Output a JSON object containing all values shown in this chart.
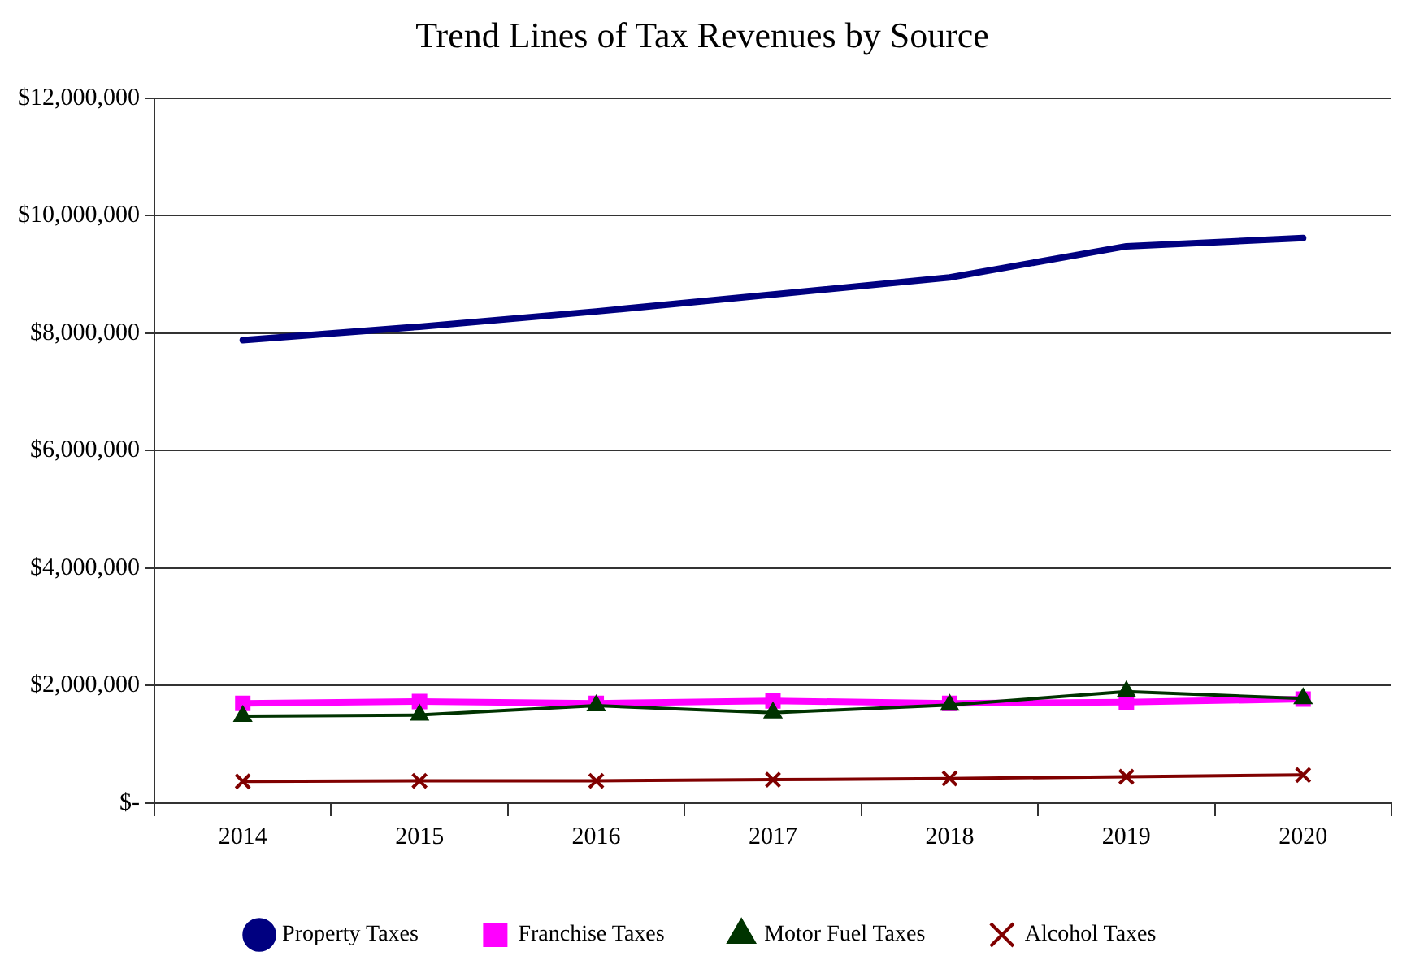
{
  "chart_data": {
    "type": "line",
    "title": "Trend Lines of Tax Revenues by Source",
    "categories": [
      "2014",
      "2015",
      "2016",
      "2017",
      "2018",
      "2019",
      "2020"
    ],
    "series": [
      {
        "name": "Property Taxes",
        "color": "#000080",
        "marker": "none",
        "values": [
          7880000,
          8110000,
          8370000,
          8660000,
          8950000,
          9480000,
          9620000
        ]
      },
      {
        "name": "Franchise Taxes",
        "color": "#ff00ff",
        "marker": "square",
        "values": [
          1700000,
          1730000,
          1700000,
          1740000,
          1700000,
          1720000,
          1770000
        ]
      },
      {
        "name": "Motor Fuel Taxes",
        "color": "#003300",
        "marker": "triangle",
        "values": [
          1480000,
          1500000,
          1660000,
          1540000,
          1670000,
          1900000,
          1780000
        ]
      },
      {
        "name": "Alcohol Taxes",
        "color": "#800000",
        "marker": "cross",
        "values": [
          370000,
          380000,
          380000,
          400000,
          420000,
          450000,
          480000
        ]
      }
    ],
    "ylim": [
      0,
      12000000
    ],
    "yticks": [
      {
        "value": 0,
        "label": "$-"
      },
      {
        "value": 2000000,
        "label": "$2,000,000"
      },
      {
        "value": 4000000,
        "label": "$4,000,000"
      },
      {
        "value": 6000000,
        "label": "$6,000,000"
      },
      {
        "value": 8000000,
        "label": "$8,000,000"
      },
      {
        "value": 10000000,
        "label": "$10,000,000"
      },
      {
        "value": 12000000,
        "label": "$12,000,000"
      }
    ],
    "grid": "y",
    "legend": "bottom"
  }
}
